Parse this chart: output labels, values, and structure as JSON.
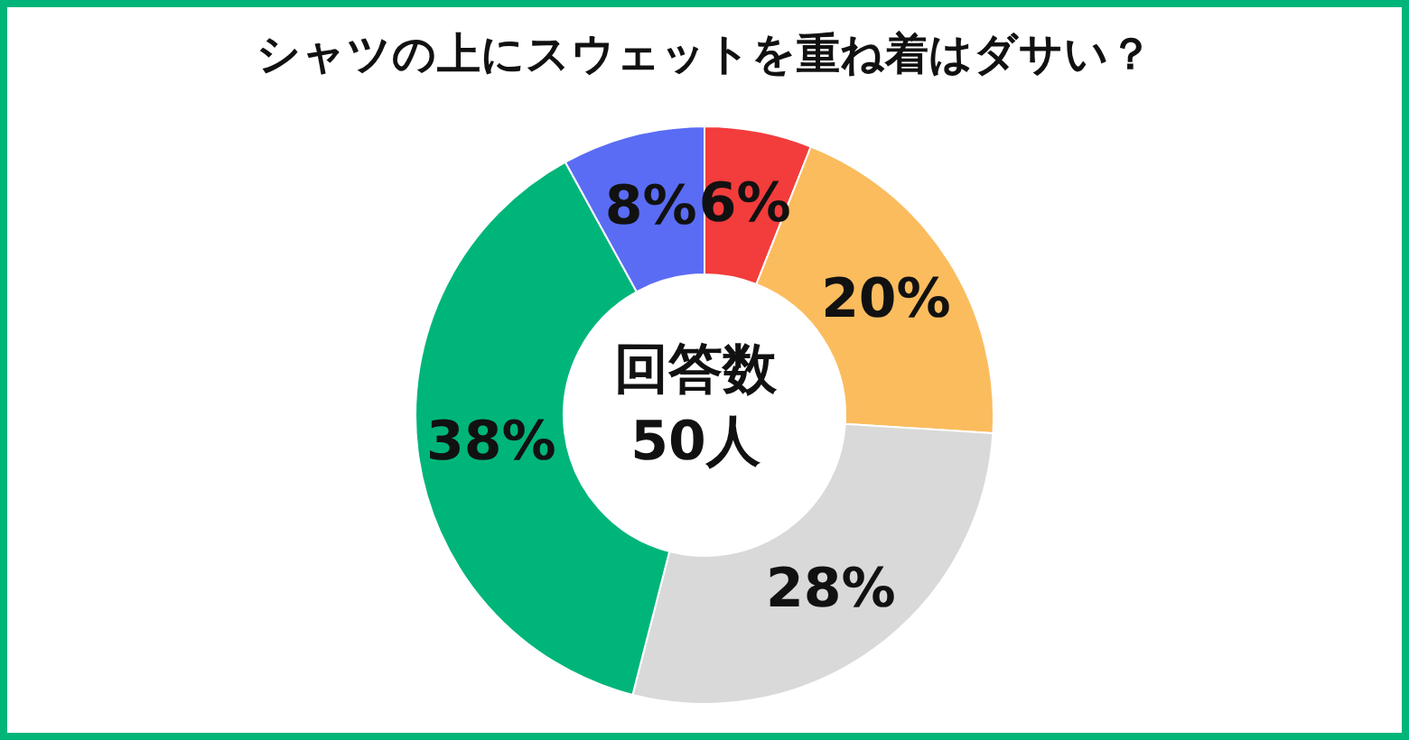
{
  "chart_data": {
    "type": "donut",
    "title": "シャツの上にスウェットを重ね着はダサい？",
    "categories": [
      null,
      null,
      null,
      null,
      null
    ],
    "values": [
      6,
      20,
      28,
      38,
      8
    ],
    "colors": [
      "#f33c3c",
      "#fbbc5e",
      "#d9d9d9",
      "#00b57a",
      "#5a6cf3"
    ],
    "value_labels": [
      "6%",
      "20%",
      "28%",
      "38%",
      "8%"
    ],
    "annotations": [
      "回答数",
      "50人"
    ]
  }
}
